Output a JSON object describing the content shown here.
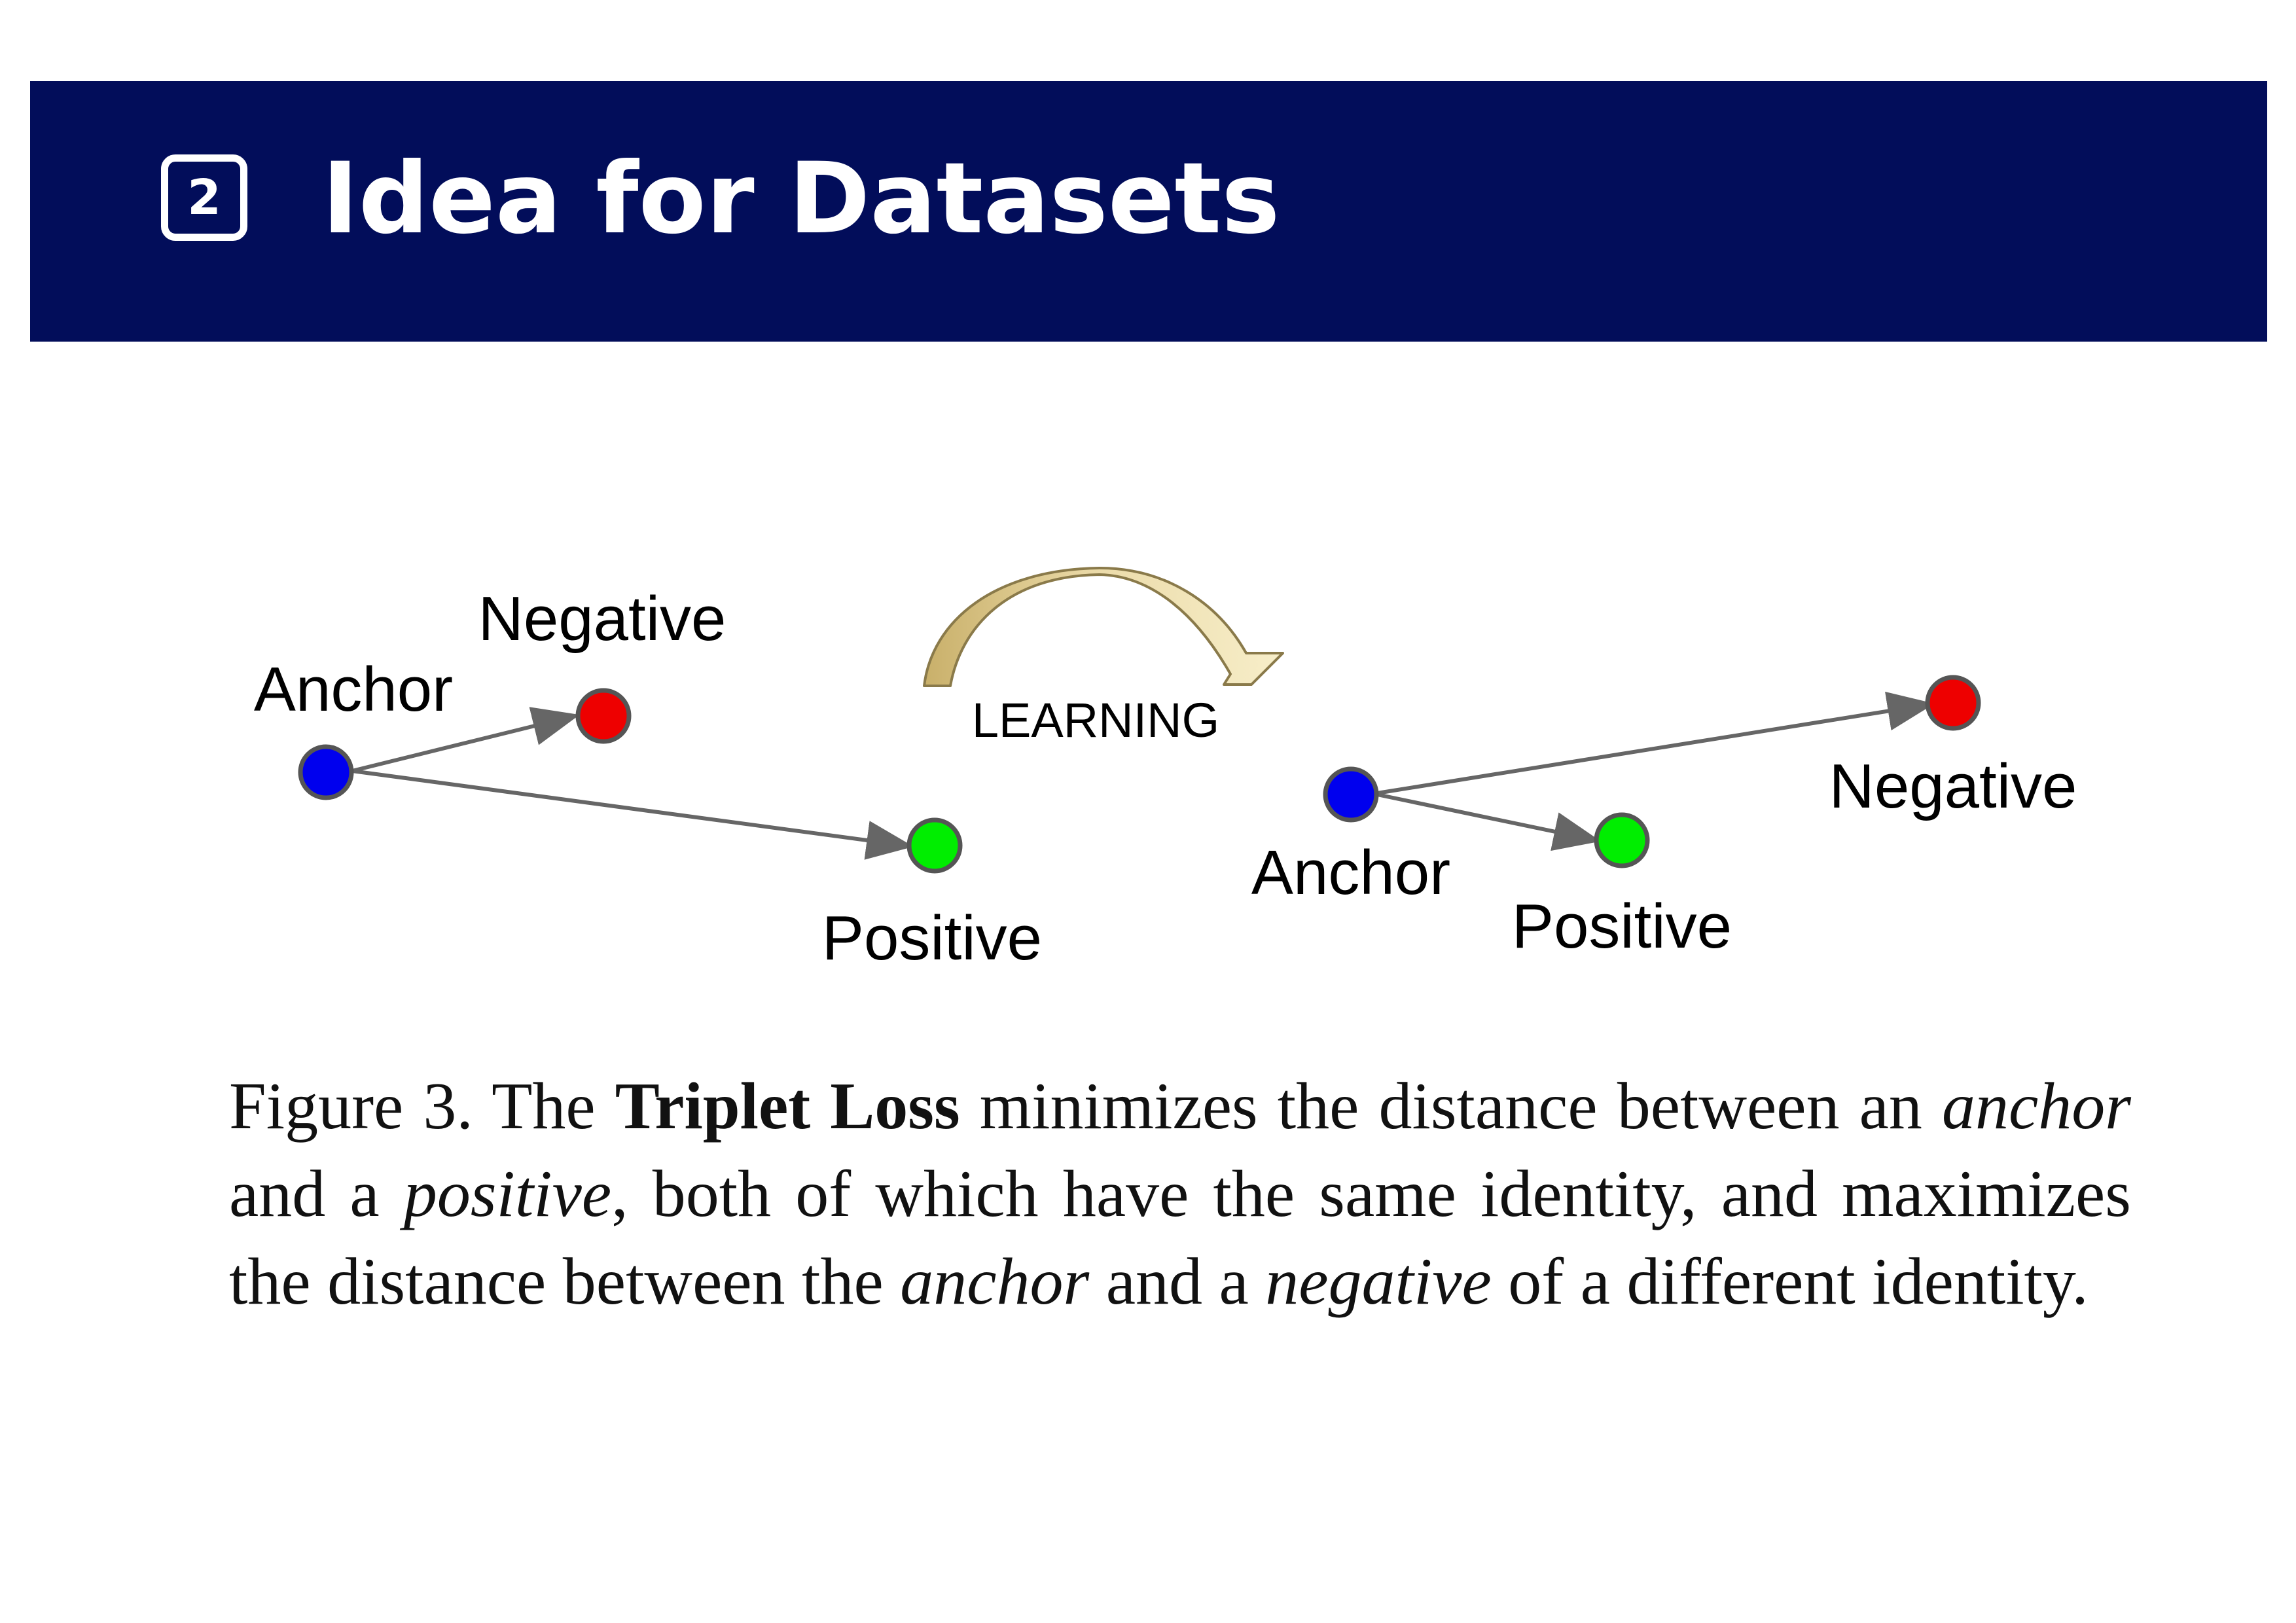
{
  "header": {
    "section_number": "2",
    "title": "Idea for Datasets",
    "background_color": "#020d5a"
  },
  "diagram": {
    "learning_label": "LEARNING",
    "before": {
      "anchor_label": "Anchor",
      "negative_label": "Negative",
      "positive_label": "Positive"
    },
    "after": {
      "anchor_label": "Anchor",
      "negative_label": "Negative",
      "positive_label": "Positive"
    },
    "colors": {
      "anchor": "#0000ee",
      "negative": "#ee0000",
      "positive": "#00ee00",
      "arrow": "#666666",
      "learning_arrow": "#d8c48a"
    }
  },
  "caption": {
    "part1": "Figure 3. The ",
    "bold": "Triplet Loss",
    "part2": " minimizes the distance between an ",
    "anchor1": "anchor",
    "part3": " and a ",
    "positive": "positive",
    "part4": ", both of which have the same identity, and maximizes the distance between the ",
    "anchor2": "anchor",
    "part5": " and a ",
    "negative": "negative",
    "part6": " of a different identity."
  }
}
